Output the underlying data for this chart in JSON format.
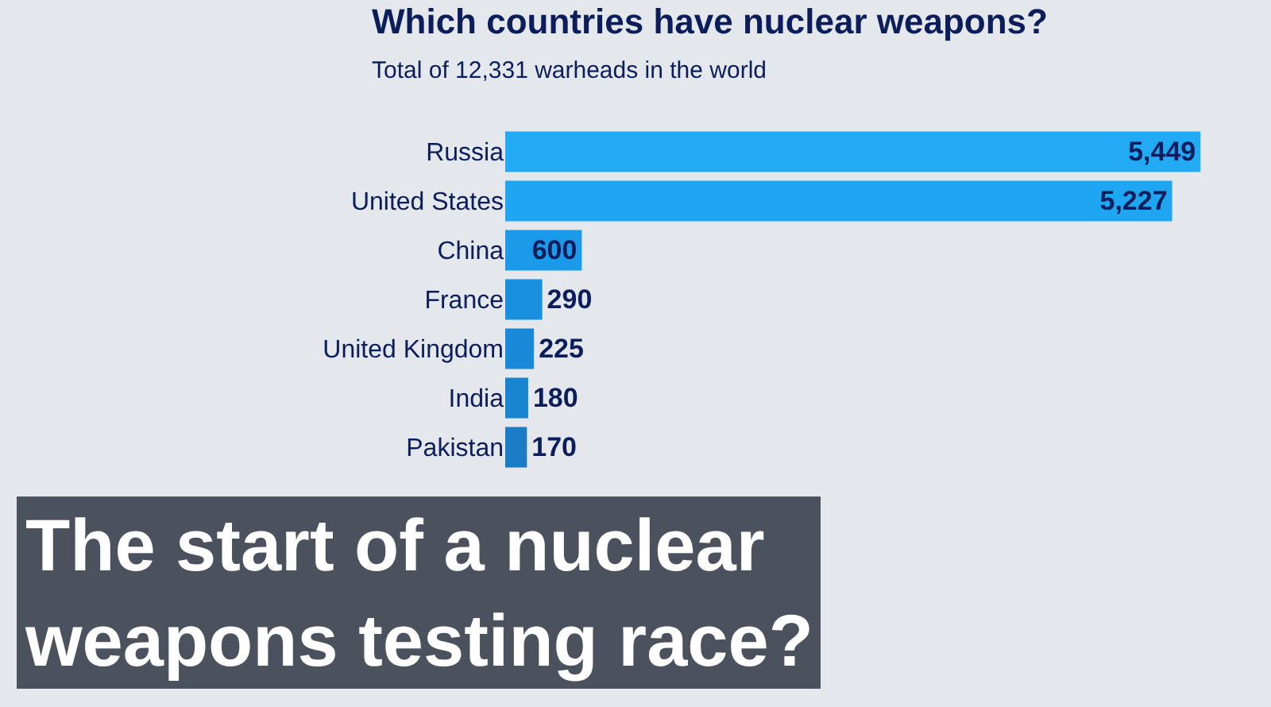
{
  "chart_data": {
    "type": "bar",
    "orientation": "horizontal",
    "title": "Which countries have nuclear weapons?",
    "subtitle": "Total of 12,331 warheads in the world",
    "categories": [
      "Russia",
      "United States",
      "China",
      "France",
      "United Kingdom",
      "India",
      "Pakistan"
    ],
    "values": [
      5449,
      5227,
      600,
      290,
      225,
      180,
      170
    ],
    "colors": [
      "#22aaf5",
      "#1fa6f2",
      "#1a9ae8",
      "#1990df",
      "#1a8ad8",
      "#1984cf",
      "#1a7cc4"
    ],
    "value_labels": [
      "5,449",
      "5,227",
      "600",
      "290",
      "225",
      "180",
      "170"
    ],
    "annotations": [
      "The start of a nuclear\nweapons testing race?"
    ]
  }
}
